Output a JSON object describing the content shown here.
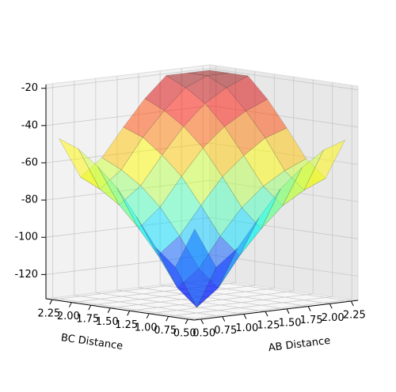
{
  "chart_data": {
    "type": "surface",
    "x_label": "AB Distance",
    "y_label": "BC Distance",
    "x": [
      0.5,
      0.75,
      1.0,
      1.25,
      1.5,
      1.75,
      2.0,
      2.25
    ],
    "y": [
      0.5,
      0.75,
      1.0,
      1.25,
      1.5,
      1.75,
      2.0,
      2.25
    ],
    "z": [
      [
        -85,
        -107,
        -98,
        -83,
        -69,
        -59,
        -51,
        -47
      ],
      [
        -107,
        -130,
        -121,
        -105,
        -92,
        -81,
        -74,
        -69
      ],
      [
        -98,
        -121,
        -112,
        -96,
        -82,
        -72,
        -65,
        -60
      ],
      [
        -83,
        -105,
        -96,
        -81,
        -67,
        -57,
        -49,
        -45
      ],
      [
        -69,
        -92,
        -82,
        -67,
        -53,
        -43,
        -36,
        -31
      ],
      [
        -59,
        -81,
        -72,
        -57,
        -43,
        -32,
        -25,
        -20
      ],
      [
        -51,
        -74,
        -65,
        -49,
        -36,
        -25,
        -20,
        -20
      ],
      [
        -47,
        -69,
        -60,
        -45,
        -31,
        -20,
        -20,
        -20
      ]
    ],
    "colormap": "jet",
    "xlim": [
      0.42,
      2.33
    ],
    "ylim": [
      0.42,
      2.33
    ],
    "zlim": [
      -133,
      -18
    ],
    "xticks": [
      {
        "value": 0.5,
        "label": "0.50"
      },
      0.75,
      {
        "value": 1,
        "label": "1.00"
      },
      1.25,
      {
        "value": 1.5,
        "label": "1.50"
      },
      1.75,
      {
        "value": 2,
        "label": "2.00"
      },
      2.25
    ],
    "yticks": [
      {
        "value": 0.5,
        "label": "0.50"
      },
      0.75,
      {
        "value": 1,
        "label": "1.00"
      },
      1.25,
      {
        "value": 1.5,
        "label": "1.50"
      },
      1.75,
      {
        "value": 2,
        "label": "2.00"
      },
      2.25
    ],
    "zticks": [
      -120,
      -100,
      -80,
      -60,
      -40,
      -20
    ],
    "grid": true
  }
}
